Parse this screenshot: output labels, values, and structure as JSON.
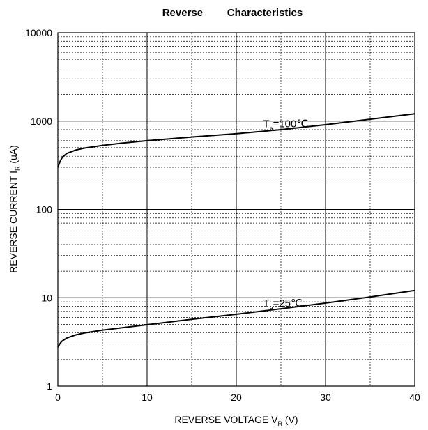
{
  "chart_data": {
    "type": "line",
    "title_part1": "Reverse",
    "title_part2": "Characteristics",
    "xlabel": {
      "main": "REVERSE VOLTAGE V",
      "sub": "R",
      "unit": " (V)"
    },
    "ylabel": {
      "main": "REVERSE CURRENT I",
      "sub": "R",
      "unit": " (uA)"
    },
    "xlim": [
      0,
      40
    ],
    "ylim": [
      1,
      10000
    ],
    "yscale": "log",
    "grid": true,
    "x_ticks": [
      "0",
      "10",
      "20",
      "30",
      "40"
    ],
    "y_ticks": [
      "1",
      "10",
      "100",
      "1000",
      "10000"
    ],
    "series": [
      {
        "name": "T_a=100°C",
        "label_main": "T",
        "label_sub": "a",
        "label_rest": "=100℃",
        "x": [
          0,
          0.25,
          0.5,
          1,
          2,
          3,
          5,
          7,
          10,
          15,
          20,
          25,
          30,
          35,
          40
        ],
        "y": [
          300,
          350,
          390,
          430,
          470,
          495,
          530,
          560,
          600,
          660,
          720,
          800,
          910,
          1050,
          1210
        ]
      },
      {
        "name": "T_a=25°C",
        "label_main": "T",
        "label_sub": "a",
        "label_rest": "=25℃",
        "x": [
          0,
          0.25,
          0.5,
          1,
          2,
          3,
          5,
          7,
          10,
          15,
          20,
          25,
          30,
          35,
          40
        ],
        "y": [
          2.75,
          3.05,
          3.25,
          3.5,
          3.8,
          4.0,
          4.3,
          4.55,
          4.95,
          5.7,
          6.5,
          7.5,
          8.7,
          10.2,
          12.1
        ]
      }
    ]
  }
}
